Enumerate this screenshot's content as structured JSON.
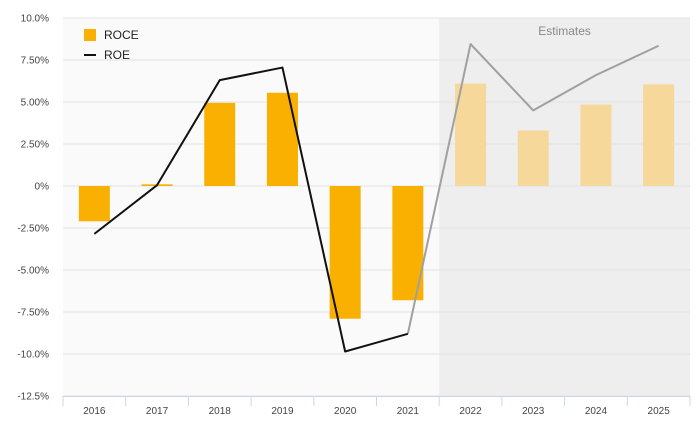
{
  "chart_data": {
    "type": "bar",
    "categories": [
      "2016",
      "2017",
      "2018",
      "2019",
      "2020",
      "2021",
      "2022",
      "2023",
      "2024",
      "2025"
    ],
    "series": [
      {
        "name": "ROCE",
        "type": "bar",
        "values": [
          -2.1,
          0.1,
          4.95,
          5.55,
          -7.9,
          -6.8,
          6.1,
          3.3,
          4.85,
          6.05
        ],
        "color": "#f9b000",
        "estimate_color": "#f6d89a"
      },
      {
        "name": "ROE",
        "type": "line",
        "values": [
          -2.85,
          0.05,
          6.3,
          7.05,
          -9.85,
          -8.8,
          8.45,
          4.5,
          6.6,
          8.35
        ],
        "color": "#111111",
        "estimate_color": "#a0a0a0"
      }
    ],
    "y_ticks": [
      "10.0%",
      "7.50%",
      "5.00%",
      "2.50%",
      "0%",
      "-2.50%",
      "-5.00%",
      "-7.50%",
      "-10.0%",
      "-12.5%"
    ],
    "ylim": [
      -12.5,
      10
    ],
    "estimates_label": "Estimates",
    "estimates_start_category": "2022",
    "legend_position": "top-left",
    "grid": true
  }
}
